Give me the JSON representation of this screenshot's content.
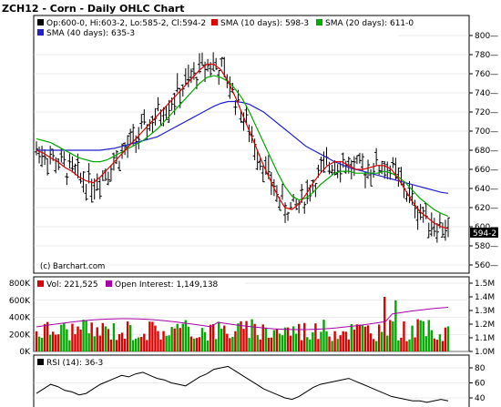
{
  "title": "ZCH12 - Corn - Daily OHLC Chart",
  "watermark": "(c) Barchart.com",
  "price_panel": {
    "ohlc_text": "Op:600-0, Hi:603-2, Lo:585-2, Cl:594-2",
    "sma10_text": "SMA (10 days): 598-3",
    "sma20_text": "SMA (20 days): 611-0",
    "sma40_text": "SMA (40 days): 635-3",
    "last_price_label": "594-2",
    "y_ticks": [
      "800",
      "780",
      "760",
      "740",
      "720",
      "700",
      "680",
      "660",
      "640",
      "620",
      "600",
      "580",
      "560"
    ],
    "y_tick_values": [
      800,
      780,
      760,
      740,
      720,
      700,
      680,
      660,
      640,
      620,
      600,
      580,
      560
    ]
  },
  "volume_panel": {
    "vol_text": "Vol: 221,525",
    "oi_text": "Open Interest: 1,149,138",
    "left_ticks": [
      "800K",
      "600K",
      "400K",
      "200K",
      "0K"
    ],
    "left_tick_values": [
      800,
      600,
      400,
      200,
      0
    ],
    "right_ticks": [
      "1.5M",
      "1.4M",
      "1.3M",
      "1.2M",
      "1.1M",
      "1.0M"
    ],
    "right_tick_values": [
      1.5,
      1.4,
      1.3,
      1.2,
      1.1,
      1.0
    ]
  },
  "rsi_panel": {
    "rsi_text": "RSI (14): 36-3",
    "y_ticks": [
      "80",
      "60",
      "40"
    ],
    "y_tick_values": [
      80,
      60,
      40
    ]
  },
  "colors": {
    "sma10": "#dd0000",
    "sma20": "#00aa00",
    "sma40": "#2222cc",
    "volume_up": "#dd0000",
    "volume_down": "#00aa00",
    "open_interest": "#aa00aa",
    "rsi": "#000000"
  },
  "chart_data": {
    "type": "line",
    "title": "ZCH12 - Corn - Daily OHLC Chart",
    "series": [
      {
        "name": "SMA (10 days)",
        "values": [
          680,
          677,
          672,
          668,
          662,
          658,
          652,
          648,
          646,
          652,
          660,
          668,
          676,
          684,
          692,
          700,
          708,
          716,
          724,
          732,
          740,
          748,
          756,
          764,
          770,
          770,
          764,
          752,
          736,
          718,
          700,
          682,
          664,
          648,
          632,
          620,
          618,
          624,
          634,
          646,
          656,
          664,
          668,
          668,
          664,
          660,
          660,
          662,
          664,
          664,
          660,
          650,
          638,
          626,
          616,
          610,
          604,
          600,
          598
        ]
      },
      {
        "name": "SMA (20 days)",
        "values": [
          692,
          690,
          688,
          684,
          680,
          676,
          672,
          670,
          668,
          668,
          670,
          674,
          678,
          682,
          686,
          690,
          696,
          702,
          710,
          718,
          726,
          734,
          742,
          750,
          756,
          758,
          756,
          752,
          744,
          734,
          720,
          704,
          688,
          672,
          656,
          642,
          632,
          628,
          630,
          636,
          644,
          650,
          656,
          658,
          658,
          656,
          656,
          656,
          656,
          658,
          656,
          652,
          646,
          638,
          630,
          624,
          618,
          614,
          611
        ]
      },
      {
        "name": "SMA (40 days)",
        "values": [
          680,
          680,
          680,
          680,
          680,
          680,
          680,
          680,
          680,
          680,
          681,
          682,
          684,
          686,
          688,
          690,
          692,
          694,
          698,
          702,
          706,
          710,
          714,
          718,
          722,
          726,
          729,
          731,
          731,
          730,
          728,
          724,
          720,
          714,
          708,
          702,
          696,
          690,
          684,
          680,
          676,
          672,
          668,
          665,
          662,
          660,
          658,
          656,
          654,
          652,
          650,
          648,
          646,
          644,
          642,
          640,
          638,
          636,
          635
        ]
      }
    ],
    "last_bar": {
      "open": 600.0,
      "high": 603.25,
      "low": 585.25,
      "close": 594.25
    },
    "ylim": [
      560,
      800
    ]
  }
}
